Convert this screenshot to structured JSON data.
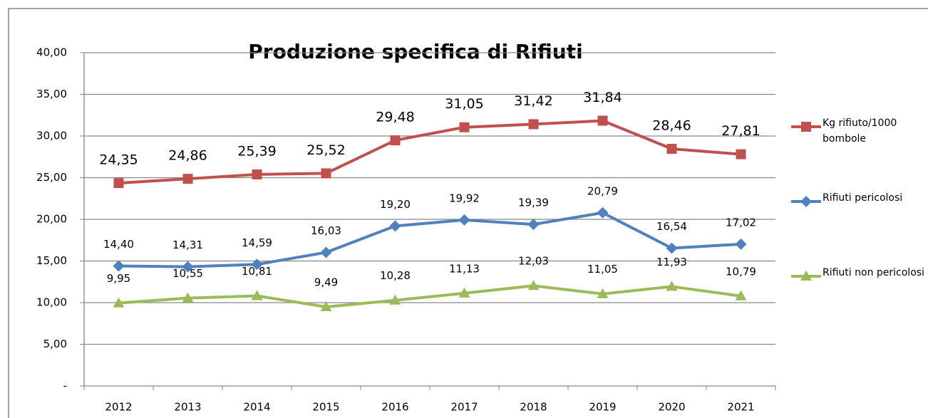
{
  "chart_data": {
    "type": "line",
    "title": "Produzione specifica di Rifiuti",
    "categories": [
      "2012",
      "2013",
      "2014",
      "2015",
      "2016",
      "2017",
      "2018",
      "2019",
      "2020",
      "2021"
    ],
    "series": [
      {
        "name": "Kg rifiuto/1000 bombole",
        "color": "#c0504d",
        "marker": "square",
        "values": [
          24.35,
          24.86,
          25.39,
          25.52,
          29.48,
          31.05,
          31.42,
          31.84,
          28.46,
          27.81
        ],
        "value_labels": [
          "24,35",
          "24,86",
          "25,39",
          "25,52",
          "29,48",
          "31,05",
          "31,42",
          "31,84",
          "28,46",
          "27,81"
        ]
      },
      {
        "name": "Rifiuti pericolosi",
        "color": "#4f81bd",
        "marker": "diamond",
        "values": [
          14.4,
          14.31,
          14.59,
          16.03,
          19.2,
          19.92,
          19.39,
          20.79,
          16.54,
          17.02
        ],
        "value_labels": [
          "14,40",
          "14,31",
          "14,59",
          "16,03",
          "19,20",
          "19,92",
          "19,39",
          "20,79",
          "16,54",
          "17,02"
        ]
      },
      {
        "name": "Rifiuti non pericolosi",
        "color": "#9bbb59",
        "marker": "triangle",
        "values": [
          9.95,
          10.55,
          10.81,
          9.49,
          10.28,
          11.13,
          12.03,
          11.05,
          11.93,
          10.79
        ],
        "value_labels": [
          "9,95",
          "10,55",
          "10,81",
          "9,49",
          "10,28",
          "11,13",
          "12,03",
          "11,05",
          "11,93",
          "10,79"
        ]
      }
    ],
    "ylim": [
      0,
      40
    ],
    "yticks": [
      {
        "value": 0,
        "label": "-"
      },
      {
        "value": 5,
        "label": "5,00"
      },
      {
        "value": 10,
        "label": "10,00"
      },
      {
        "value": 15,
        "label": "15,00"
      },
      {
        "value": 20,
        "label": "20,00"
      },
      {
        "value": 25,
        "label": "25,00"
      },
      {
        "value": 30,
        "label": "30,00"
      },
      {
        "value": 35,
        "label": "35,00"
      },
      {
        "value": 40,
        "label": "40,00"
      }
    ],
    "grid": true,
    "legend": "right"
  }
}
